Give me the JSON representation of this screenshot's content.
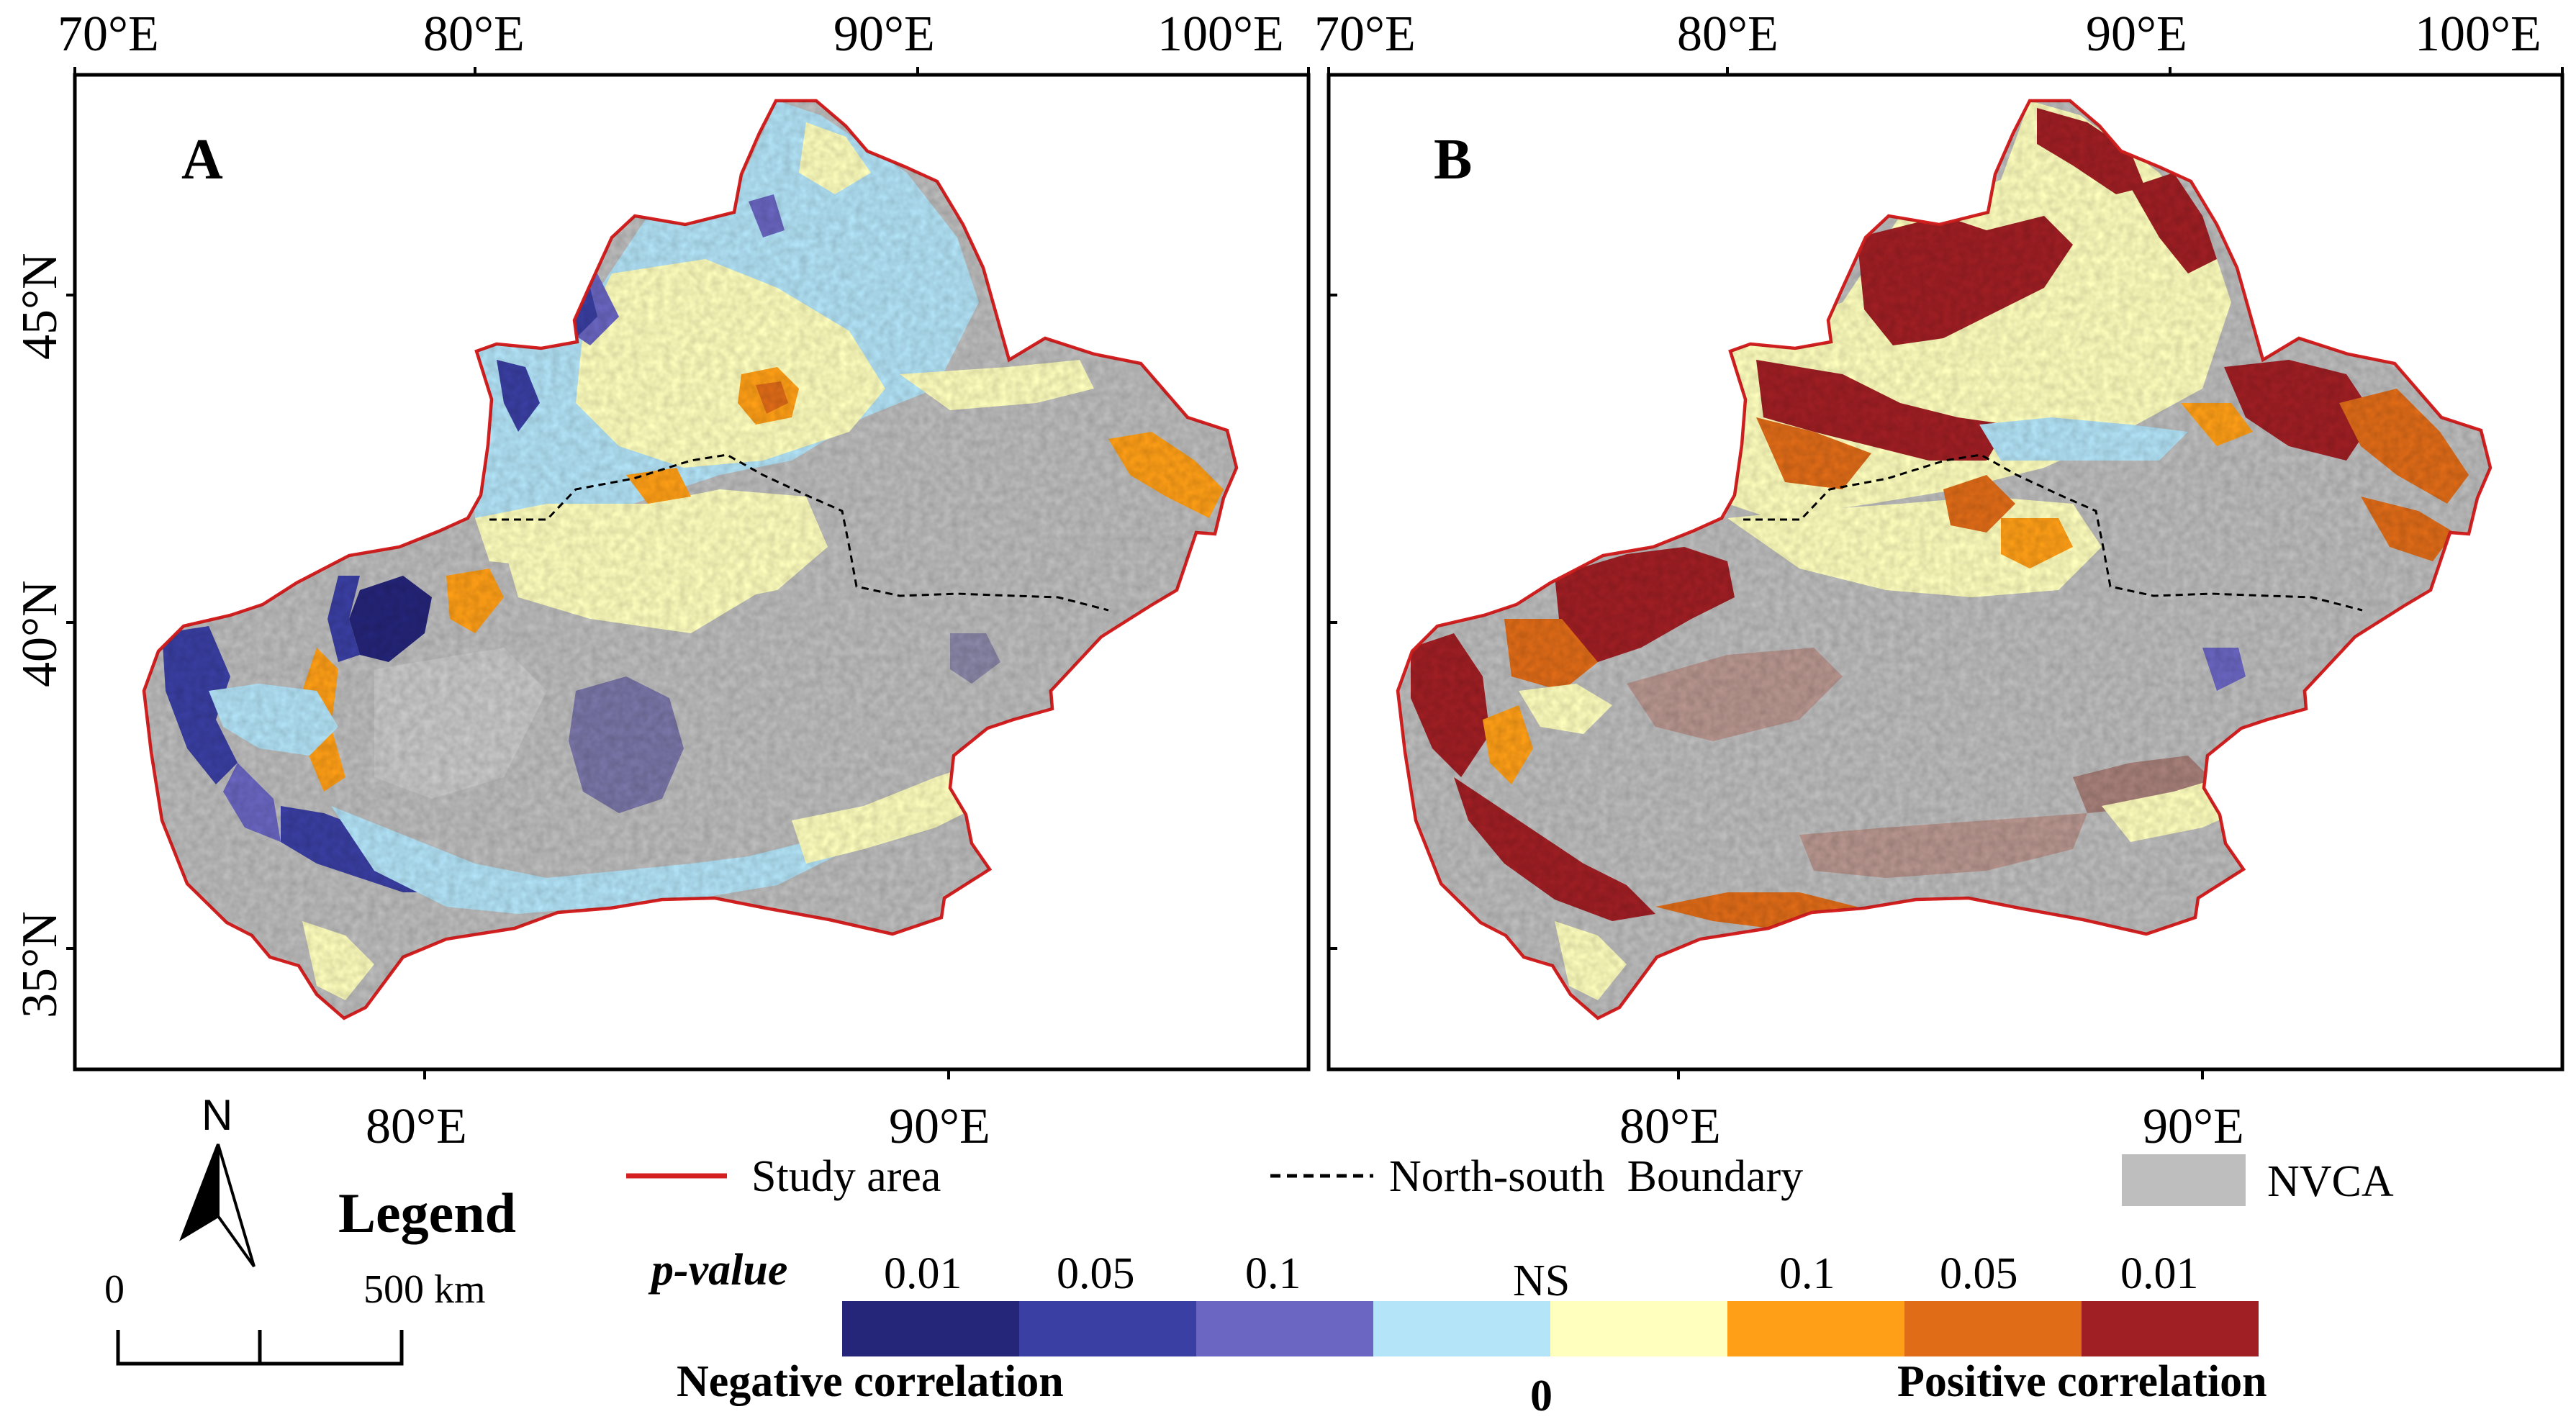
{
  "panels": [
    {
      "label": "A",
      "top_lon_labels": [
        "70°E",
        "80°E",
        "90°E",
        "100°E"
      ],
      "bottom_lon_labels": [
        "80°E",
        "90°E"
      ],
      "lat_labels": [
        "45°N",
        "40°N",
        "35°N"
      ]
    },
    {
      "label": "B",
      "top_lon_labels": [
        "70°E",
        "80°E",
        "90°E",
        "100°E"
      ],
      "bottom_lon_labels": [
        "80°E",
        "90°E"
      ],
      "lat_labels": []
    }
  ],
  "north_arrow": {
    "label": "N"
  },
  "scale_bar": {
    "start": "0",
    "end": "500 km"
  },
  "legend": {
    "title": "Legend",
    "study_area": "Study area",
    "boundary": "North-south  Boundary",
    "nvca": "NVCA",
    "pvalue_label": "p-value",
    "pvalue_ticks": [
      "0.01",
      "0.05",
      "0.1",
      "NS",
      "0.1",
      "0.05",
      "0.01"
    ],
    "negative": "Negative correlation",
    "zero": "0",
    "positive": "Positive correlation"
  },
  "colors": {
    "neg_001": "#25257a",
    "neg_005": "#3a3fa3",
    "neg_01": "#6a66c2",
    "ns_neg": "#b3e4f8",
    "ns_pos": "#ffffbe",
    "pos_01": "#ff9f17",
    "pos_005": "#e06c18",
    "pos_001": "#a01f24",
    "nvca": "#bebebe",
    "study_area": "#d42020"
  }
}
